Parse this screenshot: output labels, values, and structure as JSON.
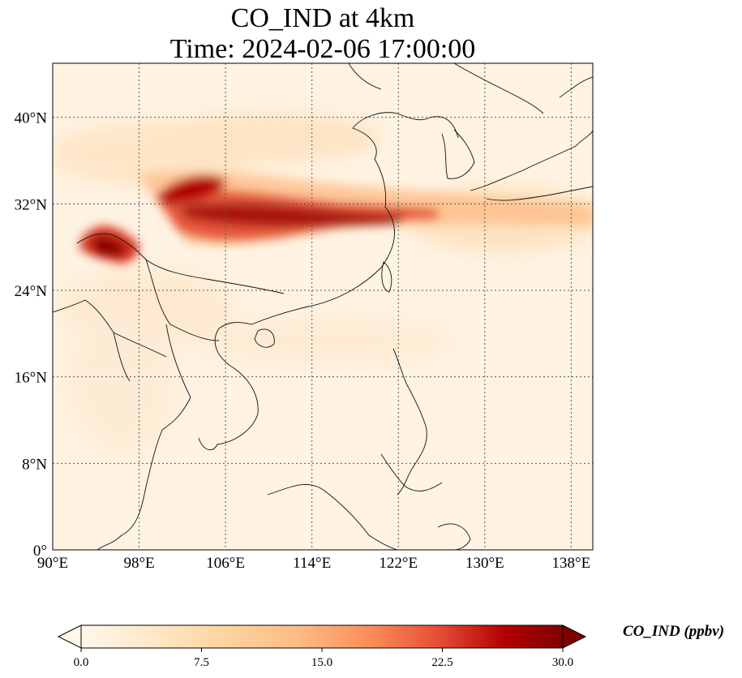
{
  "title": {
    "line1": "CO_IND at 4km",
    "line2": "Time: 2024-02-06 17:00:00"
  },
  "map": {
    "variable": "CO_IND",
    "height": "4km",
    "time": "2024-02-06 17:00:00",
    "lon_range": [
      90,
      140
    ],
    "lat_range": [
      0,
      45
    ],
    "x_ticks": [
      "90°E",
      "98°E",
      "106°E",
      "114°E",
      "122°E",
      "130°E",
      "138°E"
    ],
    "y_ticks": [
      "0°",
      "8°N",
      "16°N",
      "24°N",
      "32°N",
      "40°N"
    ],
    "gridlines": true,
    "colormap": "OrRd"
  },
  "colorbar": {
    "label": "CO_IND (ppbv)",
    "ticks": [
      "0.0",
      "7.5",
      "15.0",
      "22.5",
      "30.0"
    ],
    "range": [
      0,
      30
    ],
    "extend": "both"
  }
}
